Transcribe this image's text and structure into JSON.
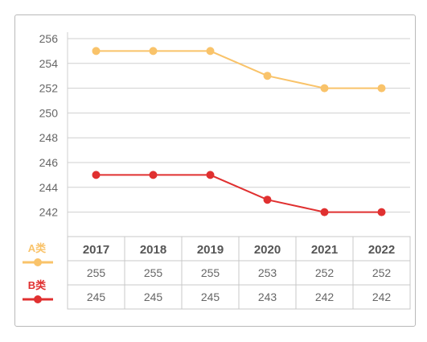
{
  "chart_data": {
    "type": "line",
    "categories": [
      "2017",
      "2018",
      "2019",
      "2020",
      "2021",
      "2022"
    ],
    "series": [
      {
        "name": "A类",
        "color": "#f9c36a",
        "values": [
          255,
          255,
          255,
          253,
          252,
          252
        ]
      },
      {
        "name": "B类",
        "color": "#e03030",
        "values": [
          245,
          245,
          245,
          243,
          242,
          242
        ]
      }
    ],
    "yticks": [
      256,
      254,
      252,
      250,
      248,
      246,
      244,
      242
    ],
    "ylim": [
      241,
      256
    ],
    "grid": true,
    "legend": "left of data table",
    "table": {
      "header": [
        "2017",
        "2018",
        "2019",
        "2020",
        "2021",
        "2022"
      ],
      "rows": [
        [
          "255",
          "255",
          "255",
          "253",
          "252",
          "252"
        ],
        [
          "245",
          "245",
          "245",
          "243",
          "242",
          "242"
        ]
      ]
    }
  }
}
